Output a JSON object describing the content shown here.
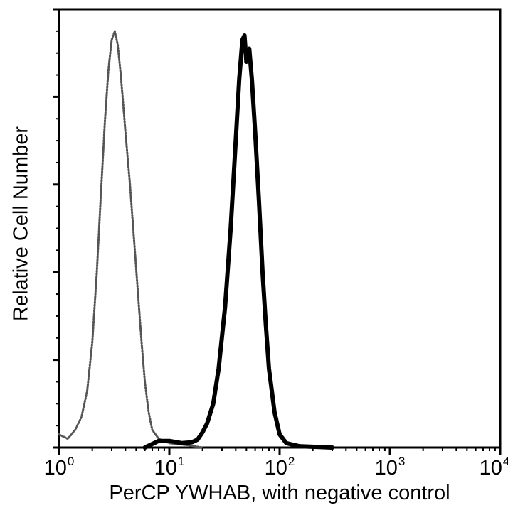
{
  "chart_data": {
    "type": "line",
    "title": "",
    "xlabel": "PerCP YWHAB, with negative control",
    "ylabel": "Relative Cell Number",
    "xscale": "log",
    "xlim": [
      1,
      10000
    ],
    "ylim": [
      0,
      100
    ],
    "grid": false,
    "legend": null,
    "x_tick_labels": [
      {
        "base": "10",
        "exp": "0",
        "value": 1
      },
      {
        "base": "10",
        "exp": "1",
        "value": 10
      },
      {
        "base": "10",
        "exp": "2",
        "value": 100
      },
      {
        "base": "10",
        "exp": "3",
        "value": 1000
      },
      {
        "base": "10",
        "exp": "4",
        "value": 10000
      }
    ],
    "y_major_ticks": [
      0,
      20,
      40,
      60,
      80,
      100
    ],
    "y_tick_labels_shown": false,
    "series": [
      {
        "name": "negative control",
        "style": "dotted-gray",
        "color": "#555555",
        "points": [
          [
            1.0,
            3
          ],
          [
            1.2,
            2
          ],
          [
            1.4,
            4
          ],
          [
            1.6,
            7
          ],
          [
            1.8,
            13
          ],
          [
            2.0,
            24
          ],
          [
            2.2,
            40
          ],
          [
            2.4,
            58
          ],
          [
            2.6,
            74
          ],
          [
            2.8,
            86
          ],
          [
            3.0,
            93
          ],
          [
            3.2,
            95
          ],
          [
            3.4,
            92
          ],
          [
            3.6,
            86
          ],
          [
            3.8,
            79
          ],
          [
            4.0,
            72
          ],
          [
            4.4,
            60
          ],
          [
            4.8,
            47
          ],
          [
            5.2,
            35
          ],
          [
            5.6,
            24
          ],
          [
            6.0,
            15
          ],
          [
            6.5,
            8
          ],
          [
            7.0,
            4
          ],
          [
            8.0,
            2
          ],
          [
            10,
            1
          ],
          [
            15,
            0.5
          ],
          [
            20,
            0
          ]
        ]
      },
      {
        "name": "PerCP YWHAB",
        "style": "solid-black",
        "color": "#000000",
        "points": [
          [
            6,
            0
          ],
          [
            8,
            1.5
          ],
          [
            10,
            1.5
          ],
          [
            13,
            1
          ],
          [
            16,
            1.2
          ],
          [
            18,
            1.8
          ],
          [
            20,
            3.5
          ],
          [
            22,
            5.5
          ],
          [
            25,
            10
          ],
          [
            28,
            18
          ],
          [
            32,
            32
          ],
          [
            36,
            50
          ],
          [
            40,
            70
          ],
          [
            43,
            84
          ],
          [
            46,
            93
          ],
          [
            48,
            94
          ],
          [
            50,
            88
          ],
          [
            53,
            91
          ],
          [
            56,
            84
          ],
          [
            60,
            72
          ],
          [
            65,
            56
          ],
          [
            70,
            40
          ],
          [
            75,
            28
          ],
          [
            80,
            18
          ],
          [
            90,
            8
          ],
          [
            100,
            3
          ],
          [
            115,
            1
          ],
          [
            150,
            0.3
          ],
          [
            300,
            0
          ]
        ]
      }
    ]
  }
}
